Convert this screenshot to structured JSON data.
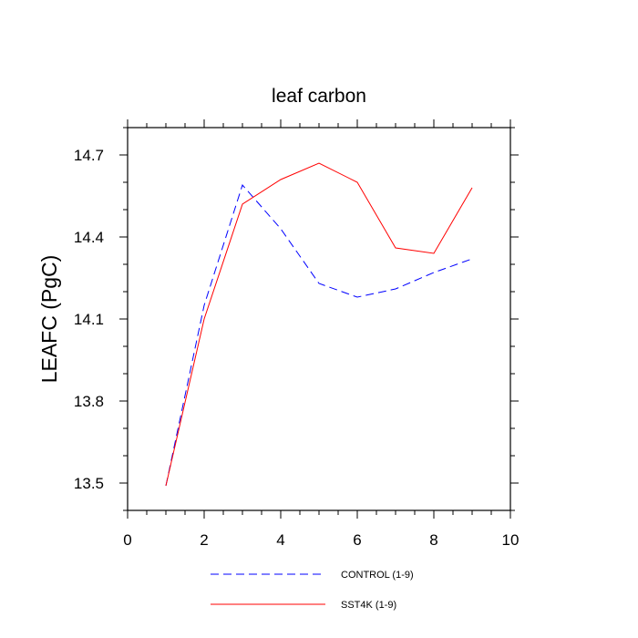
{
  "chart_data": {
    "type": "line",
    "title": "leaf carbon",
    "xlabel": "",
    "ylabel": "LEAFC  (PgC)",
    "xlim": [
      0,
      10
    ],
    "ylim": [
      13.4,
      14.8
    ],
    "xticks": [
      0,
      2,
      4,
      6,
      8,
      10
    ],
    "xtick_labels": [
      "0",
      "2",
      "4",
      "6",
      "8",
      "10"
    ],
    "yticks": [
      13.5,
      13.8,
      14.1,
      14.4,
      14.7
    ],
    "ytick_labels": [
      "13.5",
      "13.8",
      "14.1",
      "14.4",
      "14.7"
    ],
    "grid": false,
    "legend_position": "bottom",
    "series": [
      {
        "name": "CONTROL (1-9)",
        "color": "#0000ff",
        "style": "dashed",
        "x": [
          1,
          2,
          3,
          4,
          5,
          6,
          7,
          8,
          9
        ],
        "y": [
          13.49,
          14.15,
          14.59,
          14.43,
          14.23,
          14.18,
          14.21,
          14.27,
          14.32
        ]
      },
      {
        "name": "SST4K (1-9)",
        "color": "#ff0000",
        "style": "solid",
        "x": [
          1,
          2,
          3,
          4,
          5,
          6,
          7,
          8,
          9
        ],
        "y": [
          13.49,
          14.1,
          14.52,
          14.61,
          14.67,
          14.6,
          14.36,
          14.34,
          14.58
        ]
      }
    ]
  }
}
